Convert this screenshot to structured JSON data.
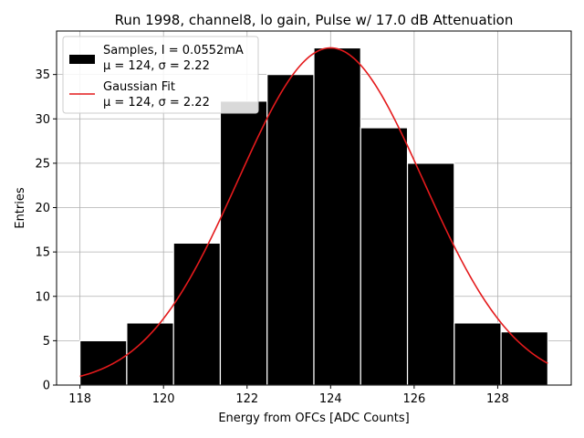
{
  "chart_data": {
    "type": "bar",
    "title": "Run 1998, channel8, lo gain, Pulse w/ 17.0 dB Attenuation",
    "xlabel": "Energy from OFCs [ADC Counts]",
    "ylabel": "Entries",
    "xlim": [
      117.44,
      129.76
    ],
    "ylim": [
      0,
      39.9
    ],
    "x_ticks": [
      118,
      120,
      122,
      124,
      126,
      128
    ],
    "y_ticks": [
      0,
      5,
      10,
      15,
      20,
      25,
      30,
      35
    ],
    "grid": true,
    "legend_position": "upper-left",
    "bins": {
      "edges": [
        118.0,
        119.12,
        120.24,
        121.36,
        122.48,
        123.6,
        124.72,
        125.84,
        126.96,
        128.08,
        129.2
      ],
      "counts": [
        5,
        7,
        16,
        32,
        35,
        38,
        29,
        25,
        7,
        6
      ]
    },
    "series": [
      {
        "name": "Samples, I = 0.0552mA",
        "stats": "μ = 124, σ = 2.22",
        "kind": "histogram",
        "color": "#000000"
      },
      {
        "name": "Gaussian Fit",
        "stats": "μ = 124, σ = 2.22",
        "kind": "line",
        "color": "#e41a1c",
        "mu": 124.0,
        "sigma": 2.22,
        "amplitude": 38.0,
        "x_range": [
          118.0,
          129.2
        ]
      }
    ]
  }
}
